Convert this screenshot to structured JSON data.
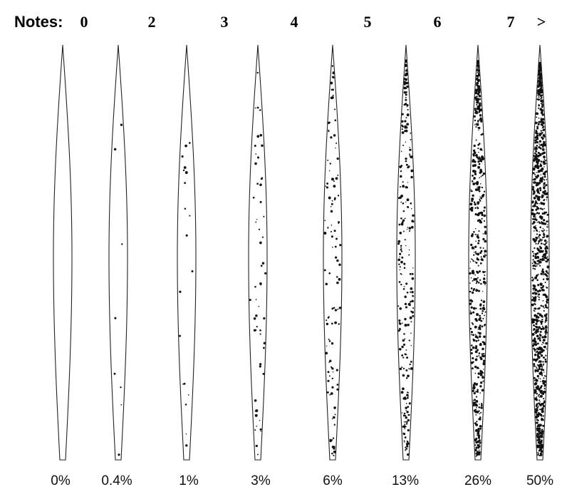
{
  "header": {
    "label": "Notes:"
  },
  "grades": [
    {
      "note": "0",
      "percent": "0%"
    },
    {
      "note": "2",
      "percent": "0.4%"
    },
    {
      "note": "3",
      "percent": "1%"
    },
    {
      "note": "4",
      "percent": "3%"
    },
    {
      "note": "5",
      "percent": "6%"
    },
    {
      "note": "6",
      "percent": "13%"
    },
    {
      "note": "7",
      "percent": "26%"
    },
    {
      "note": ">",
      "percent": "50%"
    }
  ]
}
